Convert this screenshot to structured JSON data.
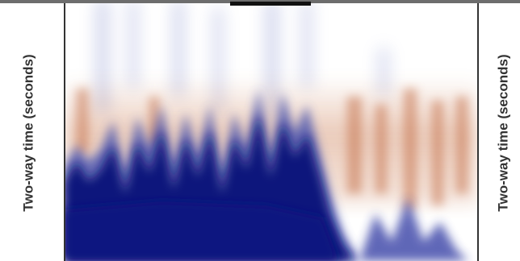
{
  "left_axis_label": "Two-way time (seconds)",
  "right_axis_label": "Two-way time (seconds)"
}
